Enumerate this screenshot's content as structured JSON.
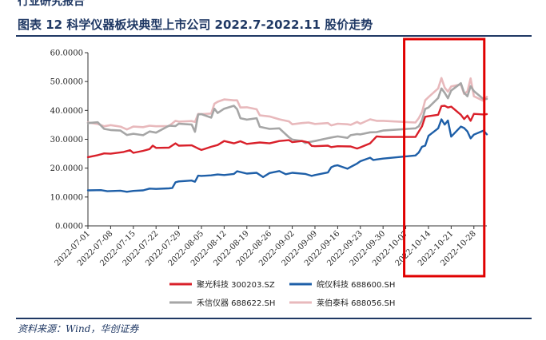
{
  "header": {
    "cropped_text": "行业研究报告"
  },
  "figure": {
    "title": "图表 12  科学仪器板块典型上市公司 2022.7-2022.11 股价走势",
    "source": "资料来源：Wind，华创证券"
  },
  "chart_data": {
    "type": "line",
    "title": "",
    "xlabel": "",
    "ylabel": "",
    "ylim": [
      0,
      60
    ],
    "y_ticks": [
      "0.0000",
      "10.0000",
      "20.0000",
      "30.0000",
      "40.0000",
      "50.0000",
      "60.0000"
    ],
    "x_tick_labels": [
      "2022-07-01",
      "2022-07-08",
      "2022-07-15",
      "2022-07-22",
      "2022-07-29",
      "2022-08-05",
      "2022-08-12",
      "2022-08-19",
      "2022-08-26",
      "2022-09-02",
      "2022-09-09",
      "2022-09-16",
      "2022-09-23",
      "2022-09-30",
      "2022-10-07",
      "2022-10-14",
      "2022-10-21",
      "2022-10-28"
    ],
    "grid": false,
    "legend_position": "bottom",
    "highlight_box": {
      "from_date": "2022-10-07",
      "to_date": "2022-10-28",
      "color": "#e00000"
    },
    "series": [
      {
        "name": "聚光科技 300203.SZ",
        "color": "#d9202a",
        "points": [
          [
            "2022-07-01",
            23.8
          ],
          [
            "2022-07-04",
            24.5
          ],
          [
            "2022-07-06",
            25.1
          ],
          [
            "2022-07-08",
            25.0
          ],
          [
            "2022-07-12",
            25.6
          ],
          [
            "2022-07-14",
            26.2
          ],
          [
            "2022-07-15",
            25.3
          ],
          [
            "2022-07-18",
            26.0
          ],
          [
            "2022-07-20",
            26.6
          ],
          [
            "2022-07-21",
            27.8
          ],
          [
            "2022-07-22",
            27.0
          ],
          [
            "2022-07-26",
            27.1
          ],
          [
            "2022-07-28",
            28.6
          ],
          [
            "2022-07-29",
            27.8
          ],
          [
            "2022-08-02",
            27.9
          ],
          [
            "2022-08-04",
            26.8
          ],
          [
            "2022-08-05",
            26.3
          ],
          [
            "2022-08-08",
            27.4
          ],
          [
            "2022-08-10",
            28.0
          ],
          [
            "2022-08-12",
            29.4
          ],
          [
            "2022-08-15",
            28.6
          ],
          [
            "2022-08-17",
            29.3
          ],
          [
            "2022-08-19",
            28.4
          ],
          [
            "2022-08-23",
            28.9
          ],
          [
            "2022-08-26",
            28.6
          ],
          [
            "2022-08-29",
            29.4
          ],
          [
            "2022-09-01",
            29.7
          ],
          [
            "2022-09-02",
            29.0
          ],
          [
            "2022-09-05",
            29.4
          ],
          [
            "2022-09-07",
            28.9
          ],
          [
            "2022-09-08",
            27.7
          ],
          [
            "2022-09-09",
            27.6
          ],
          [
            "2022-09-13",
            27.8
          ],
          [
            "2022-09-14",
            27.3
          ],
          [
            "2022-09-16",
            27.6
          ],
          [
            "2022-09-20",
            27.5
          ],
          [
            "2022-09-22",
            26.8
          ],
          [
            "2022-09-23",
            27.2
          ],
          [
            "2022-09-26",
            28.6
          ],
          [
            "2022-09-28",
            31.0
          ],
          [
            "2022-09-30",
            30.8
          ],
          [
            "2022-10-10",
            30.8
          ],
          [
            "2022-10-12",
            34.5
          ],
          [
            "2022-10-13",
            37.8
          ],
          [
            "2022-10-14",
            38.0
          ],
          [
            "2022-10-17",
            38.5
          ],
          [
            "2022-10-18",
            41.5
          ],
          [
            "2022-10-19",
            41.6
          ],
          [
            "2022-10-20",
            41.0
          ],
          [
            "2022-10-21",
            41.3
          ],
          [
            "2022-10-24",
            38.5
          ],
          [
            "2022-10-25",
            37.0
          ],
          [
            "2022-10-26",
            38.2
          ],
          [
            "2022-10-27",
            36.4
          ],
          [
            "2022-10-28",
            38.8
          ],
          [
            "2022-10-31",
            38.6
          ],
          [
            "2022-11-01",
            38.7
          ]
        ]
      },
      {
        "name": "皖仪科技 688600.SH",
        "color": "#1e5fa8",
        "points": [
          [
            "2022-07-01",
            12.3
          ],
          [
            "2022-07-05",
            12.4
          ],
          [
            "2022-07-07",
            12.0
          ],
          [
            "2022-07-11",
            12.2
          ],
          [
            "2022-07-13",
            11.8
          ],
          [
            "2022-07-15",
            12.1
          ],
          [
            "2022-07-18",
            12.3
          ],
          [
            "2022-07-20",
            12.9
          ],
          [
            "2022-07-22",
            12.8
          ],
          [
            "2022-07-26",
            13.0
          ],
          [
            "2022-07-27",
            13.1
          ],
          [
            "2022-07-28",
            15.1
          ],
          [
            "2022-07-29",
            15.4
          ],
          [
            "2022-08-02",
            15.7
          ],
          [
            "2022-08-03",
            15.3
          ],
          [
            "2022-08-04",
            17.4
          ],
          [
            "2022-08-05",
            17.3
          ],
          [
            "2022-08-08",
            17.5
          ],
          [
            "2022-08-10",
            17.8
          ],
          [
            "2022-08-12",
            17.6
          ],
          [
            "2022-08-15",
            18.0
          ],
          [
            "2022-08-16",
            18.9
          ],
          [
            "2022-08-19",
            18.1
          ],
          [
            "2022-08-22",
            18.4
          ],
          [
            "2022-08-24",
            16.9
          ],
          [
            "2022-08-26",
            18.3
          ],
          [
            "2022-08-29",
            19.0
          ],
          [
            "2022-08-31",
            17.9
          ],
          [
            "2022-09-02",
            18.4
          ],
          [
            "2022-09-06",
            18.0
          ],
          [
            "2022-09-08",
            17.3
          ],
          [
            "2022-09-09",
            17.6
          ],
          [
            "2022-09-13",
            18.5
          ],
          [
            "2022-09-14",
            20.3
          ],
          [
            "2022-09-15",
            20.8
          ],
          [
            "2022-09-16",
            21.0
          ],
          [
            "2022-09-19",
            19.8
          ],
          [
            "2022-09-20",
            20.4
          ],
          [
            "2022-09-22",
            21.6
          ],
          [
            "2022-09-23",
            22.4
          ],
          [
            "2022-09-26",
            23.6
          ],
          [
            "2022-09-27",
            22.8
          ],
          [
            "2022-09-28",
            23.0
          ],
          [
            "2022-09-30",
            23.3
          ],
          [
            "2022-10-10",
            24.4
          ],
          [
            "2022-10-11",
            25.4
          ],
          [
            "2022-10-12",
            27.4
          ],
          [
            "2022-10-13",
            27.8
          ],
          [
            "2022-10-14",
            31.2
          ],
          [
            "2022-10-17",
            33.8
          ],
          [
            "2022-10-18",
            36.9
          ],
          [
            "2022-10-19",
            35.1
          ],
          [
            "2022-10-20",
            36.5
          ],
          [
            "2022-10-21",
            30.9
          ],
          [
            "2022-10-24",
            34.4
          ],
          [
            "2022-10-25",
            33.9
          ],
          [
            "2022-10-26",
            32.7
          ],
          [
            "2022-10-27",
            30.3
          ],
          [
            "2022-10-28",
            31.6
          ],
          [
            "2022-10-31",
            33.0
          ],
          [
            "2022-11-01",
            31.7
          ]
        ]
      },
      {
        "name": "禾信仪器 688622.SH",
        "color": "#a6a6a6",
        "points": [
          [
            "2022-07-01",
            35.6
          ],
          [
            "2022-07-04",
            35.9
          ],
          [
            "2022-07-06",
            33.6
          ],
          [
            "2022-07-08",
            33.2
          ],
          [
            "2022-07-11",
            33.0
          ],
          [
            "2022-07-13",
            31.5
          ],
          [
            "2022-07-15",
            31.9
          ],
          [
            "2022-07-18",
            31.4
          ],
          [
            "2022-07-20",
            32.7
          ],
          [
            "2022-07-22",
            32.3
          ],
          [
            "2022-07-26",
            34.7
          ],
          [
            "2022-07-28",
            34.6
          ],
          [
            "2022-07-29",
            35.4
          ],
          [
            "2022-08-02",
            35.1
          ],
          [
            "2022-08-03",
            32.6
          ],
          [
            "2022-08-04",
            38.6
          ],
          [
            "2022-08-05",
            38.7
          ],
          [
            "2022-08-08",
            37.5
          ],
          [
            "2022-08-09",
            40.6
          ],
          [
            "2022-08-10",
            39.1
          ],
          [
            "2022-08-12",
            40.6
          ],
          [
            "2022-08-15",
            41.6
          ],
          [
            "2022-08-16",
            40.4
          ],
          [
            "2022-08-17",
            37.3
          ],
          [
            "2022-08-19",
            36.8
          ],
          [
            "2022-08-22",
            37.3
          ],
          [
            "2022-08-23",
            34.3
          ],
          [
            "2022-08-26",
            33.6
          ],
          [
            "2022-08-29",
            33.8
          ],
          [
            "2022-09-01",
            30.7
          ],
          [
            "2022-09-02",
            29.9
          ],
          [
            "2022-09-05",
            29.4
          ],
          [
            "2022-09-06",
            28.7
          ],
          [
            "2022-09-07",
            29.0
          ],
          [
            "2022-09-09",
            29.4
          ],
          [
            "2022-09-13",
            30.4
          ],
          [
            "2022-09-14",
            30.6
          ],
          [
            "2022-09-16",
            31.0
          ],
          [
            "2022-09-19",
            30.5
          ],
          [
            "2022-09-20",
            31.4
          ],
          [
            "2022-09-22",
            31.8
          ],
          [
            "2022-09-23",
            31.7
          ],
          [
            "2022-09-26",
            32.4
          ],
          [
            "2022-09-28",
            32.5
          ],
          [
            "2022-09-30",
            33.0
          ],
          [
            "2022-10-10",
            33.8
          ],
          [
            "2022-10-11",
            34.5
          ],
          [
            "2022-10-12",
            36.6
          ],
          [
            "2022-10-13",
            40.5
          ],
          [
            "2022-10-14",
            41.0
          ],
          [
            "2022-10-17",
            44.3
          ],
          [
            "2022-10-18",
            47.6
          ],
          [
            "2022-10-19",
            46.1
          ],
          [
            "2022-10-20",
            44.2
          ],
          [
            "2022-10-21",
            46.9
          ],
          [
            "2022-10-24",
            49.4
          ],
          [
            "2022-10-25",
            46.1
          ],
          [
            "2022-10-26",
            44.9
          ],
          [
            "2022-10-27",
            48.4
          ],
          [
            "2022-10-28",
            46.7
          ],
          [
            "2022-10-31",
            43.9
          ],
          [
            "2022-11-01",
            44.0
          ]
        ]
      },
      {
        "name": "莱伯泰科 688056.SH",
        "color": "#e8b9bc",
        "points": [
          [
            "2022-07-01",
            35.8
          ],
          [
            "2022-07-04",
            35.3
          ],
          [
            "2022-07-06",
            34.5
          ],
          [
            "2022-07-08",
            34.9
          ],
          [
            "2022-07-11",
            34.4
          ],
          [
            "2022-07-13",
            33.4
          ],
          [
            "2022-07-15",
            34.4
          ],
          [
            "2022-07-18",
            34.2
          ],
          [
            "2022-07-20",
            34.7
          ],
          [
            "2022-07-22",
            34.5
          ],
          [
            "2022-07-26",
            34.6
          ],
          [
            "2022-07-28",
            36.4
          ],
          [
            "2022-07-29",
            36.1
          ],
          [
            "2022-08-02",
            36.3
          ],
          [
            "2022-08-03",
            36.0
          ],
          [
            "2022-08-04",
            38.8
          ],
          [
            "2022-08-05",
            38.7
          ],
          [
            "2022-08-08",
            38.9
          ],
          [
            "2022-08-09",
            42.3
          ],
          [
            "2022-08-10",
            43.0
          ],
          [
            "2022-08-12",
            43.8
          ],
          [
            "2022-08-15",
            43.5
          ],
          [
            "2022-08-16",
            43.5
          ],
          [
            "2022-08-17",
            41.0
          ],
          [
            "2022-08-19",
            41.1
          ],
          [
            "2022-08-22",
            40.4
          ],
          [
            "2022-08-23",
            38.3
          ],
          [
            "2022-08-26",
            37.9
          ],
          [
            "2022-08-29",
            36.9
          ],
          [
            "2022-09-01",
            36.2
          ],
          [
            "2022-09-02",
            35.2
          ],
          [
            "2022-09-05",
            35.6
          ],
          [
            "2022-09-07",
            35.8
          ],
          [
            "2022-09-09",
            35.3
          ],
          [
            "2022-09-13",
            35.6
          ],
          [
            "2022-09-14",
            34.8
          ],
          [
            "2022-09-16",
            35.4
          ],
          [
            "2022-09-19",
            35.2
          ],
          [
            "2022-09-20",
            35.0
          ],
          [
            "2022-09-22",
            36.0
          ],
          [
            "2022-09-23",
            35.4
          ],
          [
            "2022-09-26",
            36.9
          ],
          [
            "2022-09-28",
            36.4
          ],
          [
            "2022-09-30",
            36.4
          ],
          [
            "2022-10-10",
            35.8
          ],
          [
            "2022-10-11",
            37.3
          ],
          [
            "2022-10-12",
            39.4
          ],
          [
            "2022-10-13",
            43.5
          ],
          [
            "2022-10-14",
            44.6
          ],
          [
            "2022-10-17",
            47.6
          ],
          [
            "2022-10-18",
            51.2
          ],
          [
            "2022-10-19",
            47.9
          ],
          [
            "2022-10-20",
            46.5
          ],
          [
            "2022-10-21",
            48.3
          ],
          [
            "2022-10-24",
            49.0
          ],
          [
            "2022-10-25",
            45.7
          ],
          [
            "2022-10-26",
            46.6
          ],
          [
            "2022-10-27",
            51.1
          ],
          [
            "2022-10-28",
            44.9
          ],
          [
            "2022-10-31",
            43.3
          ],
          [
            "2022-11-01",
            44.7
          ]
        ]
      }
    ]
  }
}
